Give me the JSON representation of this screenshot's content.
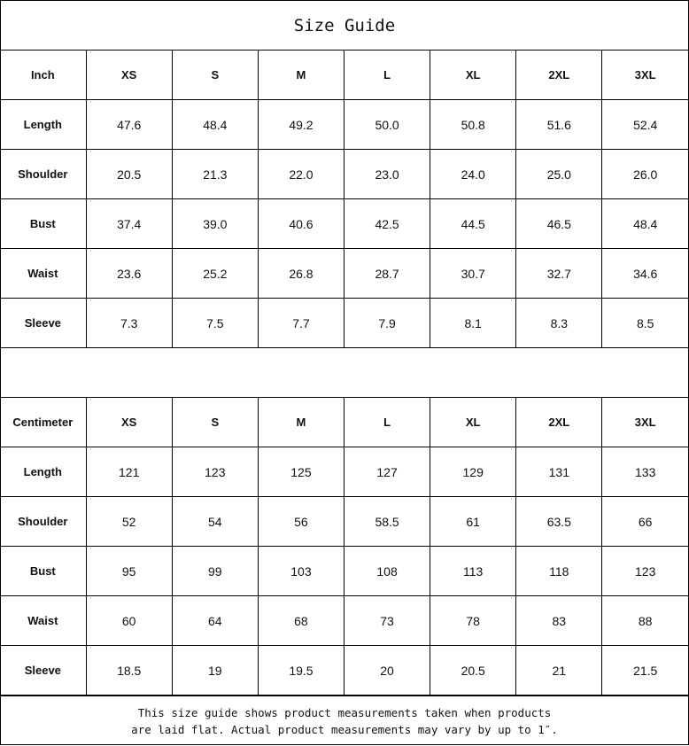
{
  "title": "Size Guide",
  "sizes": [
    "XS",
    "S",
    "M",
    "L",
    "XL",
    "2XL",
    "3XL"
  ],
  "tables": [
    {
      "unit": "Inch",
      "rows": [
        {
          "label": "Length",
          "values": [
            "47.6",
            "48.4",
            "49.2",
            "50.0",
            "50.8",
            "51.6",
            "52.4"
          ]
        },
        {
          "label": "Shoulder",
          "values": [
            "20.5",
            "21.3",
            "22.0",
            "23.0",
            "24.0",
            "25.0",
            "26.0"
          ]
        },
        {
          "label": "Bust",
          "values": [
            "37.4",
            "39.0",
            "40.6",
            "42.5",
            "44.5",
            "46.5",
            "48.4"
          ]
        },
        {
          "label": "Waist",
          "values": [
            "23.6",
            "25.2",
            "26.8",
            "28.7",
            "30.7",
            "32.7",
            "34.6"
          ]
        },
        {
          "label": "Sleeve",
          "values": [
            "7.3",
            "7.5",
            "7.7",
            "7.9",
            "8.1",
            "8.3",
            "8.5"
          ]
        }
      ]
    },
    {
      "unit": "Centimeter",
      "rows": [
        {
          "label": "Length",
          "values": [
            "121",
            "123",
            "125",
            "127",
            "129",
            "131",
            "133"
          ]
        },
        {
          "label": "Shoulder",
          "values": [
            "52",
            "54",
            "56",
            "58.5",
            "61",
            "63.5",
            "66"
          ]
        },
        {
          "label": "Bust",
          "values": [
            "95",
            "99",
            "103",
            "108",
            "113",
            "118",
            "123"
          ]
        },
        {
          "label": "Waist",
          "values": [
            "60",
            "64",
            "68",
            "73",
            "78",
            "83",
            "88"
          ]
        },
        {
          "label": "Sleeve",
          "values": [
            "18.5",
            "19",
            "19.5",
            "20",
            "20.5",
            "21",
            "21.5"
          ]
        }
      ]
    }
  ],
  "footer": {
    "line1": "This size guide shows product measurements taken when products",
    "line2": "are laid flat. Actual product measurements may vary by up to 1″."
  }
}
